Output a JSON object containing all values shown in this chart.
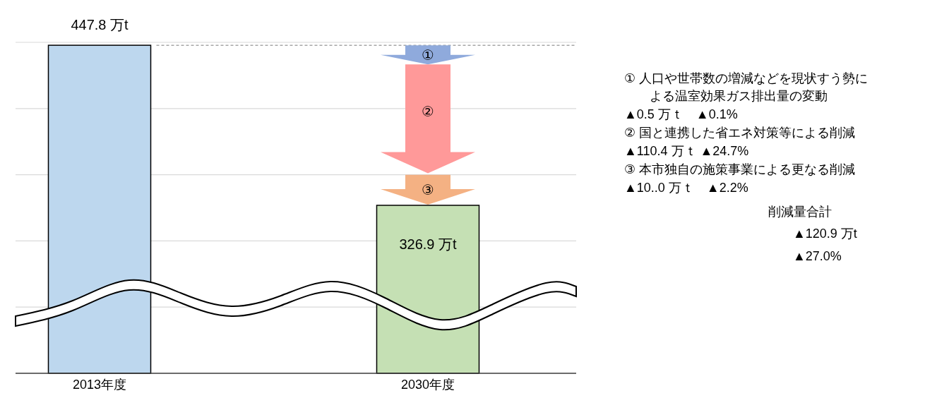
{
  "chart_data": {
    "type": "bar",
    "categories": [
      "2013年度",
      "2030年度"
    ],
    "values": [
      447.8,
      326.9
    ],
    "colors": [
      "#bdd7ee",
      "#c5e0b4"
    ],
    "value_labels": [
      "447.8 万t",
      "326.9 万t"
    ],
    "ylim": [
      200,
      450
    ],
    "yticks": [
      {
        "value": 200,
        "label": null
      },
      {
        "value": 250,
        "label": null
      },
      {
        "value": 300,
        "label": null
      },
      {
        "value": 350,
        "label": null
      },
      {
        "value": 400,
        "label": null
      },
      {
        "value": 450,
        "label": null
      }
    ],
    "tick_labels": "x",
    "grid": "y",
    "ref_lines": [
      {
        "axis": "y",
        "value": 447.8,
        "color": "#a6a6a6",
        "line_style": "dashed"
      }
    ],
    "annotations": [
      "①",
      "②",
      "③",
      "①  人口や世帯数の増減などを現状すう勢に",
      "よる温室効果ガス排出量の変動",
      "▲0.5 万ｔ　▲0.1%",
      "②  国と連携した省エネ対策等による削減",
      "▲110.4 万ｔ  ▲24.7%",
      "③  本市独自の施策事業による更なる削減",
      "▲10..0 万ｔ　▲2.2%",
      "削減量合計",
      "▲120.9 万t",
      "▲27.0%"
    ]
  }
}
